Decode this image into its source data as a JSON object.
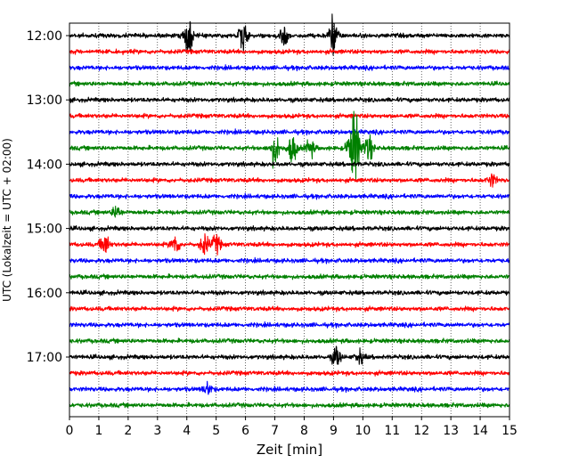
{
  "chart_data": {
    "type": "line",
    "title": "",
    "xlabel": "Zeit  [min]",
    "ylabel": "UTC (Lokalzeit = UTC + 02:00)",
    "xlim": [
      0,
      15
    ],
    "x_ticks": [
      "0",
      "1",
      "2",
      "3",
      "4",
      "5",
      "6",
      "7",
      "8",
      "9",
      "10",
      "11",
      "12",
      "13",
      "14",
      "15"
    ],
    "y_ticks": [
      "12:00",
      "13:00",
      "14:00",
      "15:00",
      "16:00",
      "17:00"
    ],
    "y_tick_traces": [
      0,
      4,
      8,
      12,
      16,
      20
    ],
    "grid": "vertical-dotted",
    "trace_colors": [
      "#000000",
      "#ff0000",
      "#0000ff",
      "#008000"
    ],
    "traces_per_hour": 4,
    "minutes_per_trace": 15,
    "traces": [
      {
        "start": "12:00",
        "color": "#000000",
        "events": [
          {
            "t": 4.05,
            "a": 3.0
          },
          {
            "t": 5.9,
            "a": 2.4
          },
          {
            "t": 7.3,
            "a": 1.6
          },
          {
            "t": 9.0,
            "a": 3.0
          }
        ]
      },
      {
        "start": "12:15",
        "color": "#ff0000",
        "events": []
      },
      {
        "start": "12:30",
        "color": "#0000ff",
        "events": []
      },
      {
        "start": "12:45",
        "color": "#008000",
        "events": []
      },
      {
        "start": "13:00",
        "color": "#000000",
        "events": []
      },
      {
        "start": "13:15",
        "color": "#ff0000",
        "events": []
      },
      {
        "start": "13:30",
        "color": "#0000ff",
        "events": []
      },
      {
        "start": "13:45",
        "color": "#008000",
        "events": [
          {
            "t": 7.0,
            "a": 2.6
          },
          {
            "t": 7.6,
            "a": 2.4
          },
          {
            "t": 8.2,
            "a": 1.4
          },
          {
            "t": 9.7,
            "a": 6.0
          },
          {
            "t": 10.2,
            "a": 2.0
          }
        ]
      },
      {
        "start": "14:00",
        "color": "#000000",
        "events": []
      },
      {
        "start": "14:15",
        "color": "#ff0000",
        "events": [
          {
            "t": 14.4,
            "a": 1.0
          }
        ]
      },
      {
        "start": "14:30",
        "color": "#0000ff",
        "events": []
      },
      {
        "start": "14:45",
        "color": "#008000",
        "events": [
          {
            "t": 1.6,
            "a": 1.0
          }
        ]
      },
      {
        "start": "15:00",
        "color": "#000000",
        "events": []
      },
      {
        "start": "15:15",
        "color": "#ff0000",
        "events": [
          {
            "t": 1.2,
            "a": 1.8
          },
          {
            "t": 3.6,
            "a": 1.6
          },
          {
            "t": 4.6,
            "a": 1.6
          },
          {
            "t": 5.0,
            "a": 1.5
          }
        ]
      },
      {
        "start": "15:30",
        "color": "#0000ff",
        "events": []
      },
      {
        "start": "15:45",
        "color": "#008000",
        "events": []
      },
      {
        "start": "16:00",
        "color": "#000000",
        "events": []
      },
      {
        "start": "16:15",
        "color": "#ff0000",
        "events": []
      },
      {
        "start": "16:30",
        "color": "#0000ff",
        "events": []
      },
      {
        "start": "16:45",
        "color": "#008000",
        "events": []
      },
      {
        "start": "17:00",
        "color": "#000000",
        "events": [
          {
            "t": 9.1,
            "a": 1.6
          },
          {
            "t": 9.9,
            "a": 1.0
          }
        ]
      },
      {
        "start": "17:15",
        "color": "#ff0000",
        "events": []
      },
      {
        "start": "17:30",
        "color": "#0000ff",
        "events": [
          {
            "t": 4.7,
            "a": 1.0
          }
        ]
      },
      {
        "start": "17:45",
        "color": "#008000",
        "events": []
      }
    ]
  }
}
